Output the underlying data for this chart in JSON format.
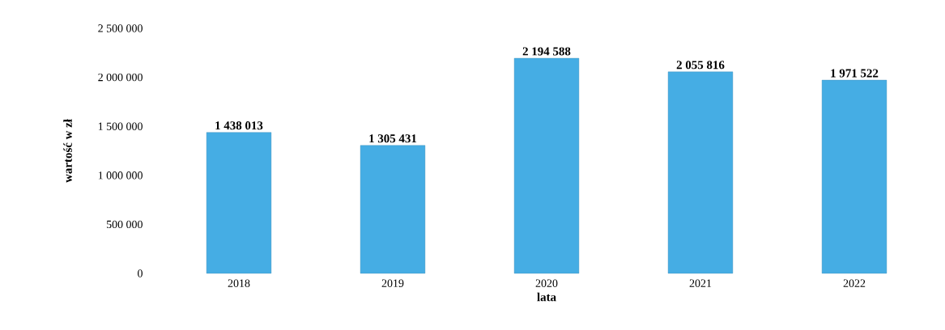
{
  "chart_data": {
    "type": "bar",
    "ylabel": "wartość w zł",
    "xlabel": "lata",
    "categories": [
      "2018",
      "2019",
      "2020",
      "2021",
      "2022"
    ],
    "values": [
      1438013,
      1305431,
      2194588,
      2055816,
      1971522
    ],
    "value_labels": [
      "1 438 013",
      "1 305 431",
      "2 194 588",
      "2 055 816",
      "1 971 522"
    ],
    "color": "#45ade4",
    "ylim": [
      0,
      2500000
    ],
    "yticks": [
      {
        "value": 0,
        "label": "0"
      },
      {
        "value": 500000,
        "label": "500 000"
      },
      {
        "value": 1000000,
        "label": "1 000 000"
      },
      {
        "value": 1500000,
        "label": "1 500 000"
      },
      {
        "value": 2000000,
        "label": "2 000 000"
      },
      {
        "value": 2500000,
        "label": "2 500 000"
      }
    ],
    "grid": false
  }
}
